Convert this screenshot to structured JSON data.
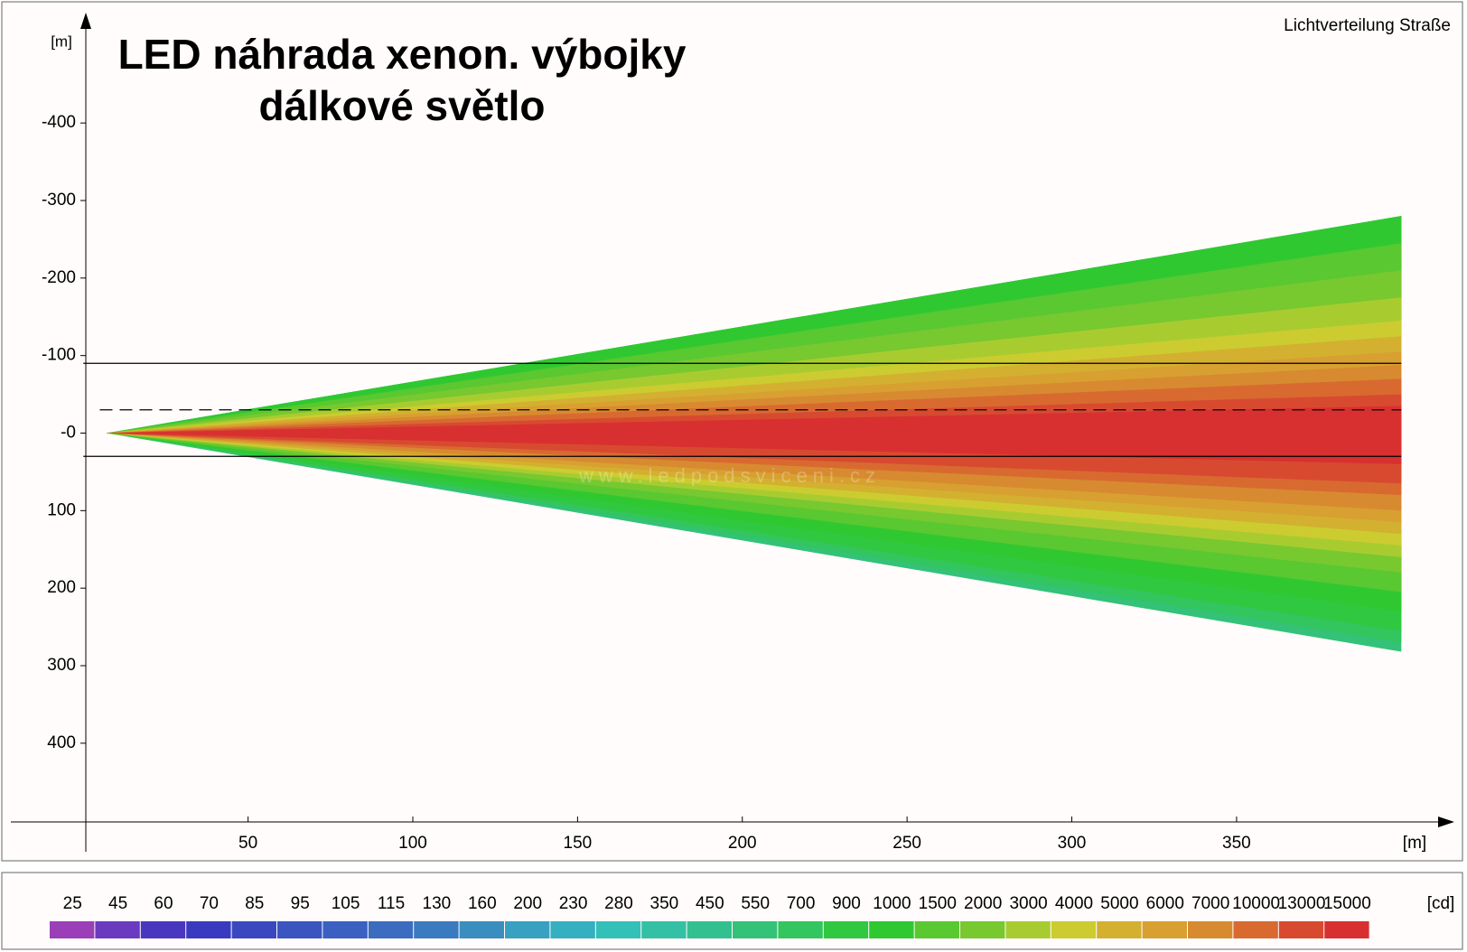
{
  "chart_data": {
    "type": "light-distribution",
    "title_lines": [
      "LED náhrada xenon. výbojky",
      "dálkové světlo"
    ],
    "corner_label": "Lichtverteilung Straße",
    "x_unit": "[m]",
    "y_unit": "[m]",
    "watermark": "www.ledpodsviceni.cz",
    "xlim": [
      -22,
      415
    ],
    "ylim": [
      -540,
      540
    ],
    "xticks": [
      50,
      100,
      150,
      200,
      250,
      300,
      350
    ],
    "yticks": [
      -400,
      -300,
      -200,
      -100,
      {
        "value": 0,
        "label": "-0"
      },
      100,
      200,
      300,
      400
    ],
    "reference_lines": [
      {
        "y": -90,
        "x_start": 0,
        "style": "solid"
      },
      {
        "y": -30,
        "x_start": 5,
        "style": "dashed"
      },
      {
        "y": 30,
        "x_start": 0,
        "style": "solid"
      }
    ],
    "apex": [
      7,
      0
    ],
    "beam_end_x": 400,
    "contours": [
      {
        "level": 550,
        "y_range": [
          -280,
          282
        ]
      },
      {
        "level": 700,
        "y_range": [
          -280,
          270
        ]
      },
      {
        "level": 900,
        "y_range": [
          -280,
          255
        ]
      },
      {
        "level": 1000,
        "y_range": [
          -280,
          230
        ]
      },
      {
        "level": 1500,
        "y_range": [
          -245,
          205
        ]
      },
      {
        "level": 2000,
        "y_range": [
          -210,
          180
        ]
      },
      {
        "level": 3000,
        "y_range": [
          -175,
          160
        ]
      },
      {
        "level": 4000,
        "y_range": [
          -145,
          145
        ]
      },
      {
        "level": 5000,
        "y_range": [
          -125,
          130
        ]
      },
      {
        "level": 6000,
        "y_range": [
          -105,
          115
        ]
      },
      {
        "level": 7000,
        "y_range": [
          -88,
          100
        ]
      },
      {
        "level": 10000,
        "y_range": [
          -70,
          80
        ]
      },
      {
        "level": 13000,
        "y_range": [
          -50,
          65
        ]
      },
      {
        "level": 15000,
        "y_range": [
          -35,
          40
        ]
      }
    ],
    "legend_unit": "[cd]",
    "legend_levels": [
      25,
      45,
      60,
      70,
      85,
      95,
      105,
      115,
      130,
      160,
      200,
      230,
      280,
      350,
      450,
      550,
      700,
      900,
      1000,
      1500,
      2000,
      3000,
      4000,
      5000,
      6000,
      7000,
      10000,
      13000,
      15000
    ],
    "legend_colors": [
      "#9a3fb8",
      "#6a3bbf",
      "#4a37c0",
      "#3a3ac0",
      "#3a48c0",
      "#3a55c0",
      "#3b60c2",
      "#3b6cc0",
      "#3a7abf",
      "#3a8ebf",
      "#38a0c0",
      "#35b0c0",
      "#33c0b8",
      "#33c0a5",
      "#33c090",
      "#33c278",
      "#33c55e",
      "#30c840",
      "#30c830",
      "#5ac830",
      "#78c830",
      "#a8cc30",
      "#cccc30",
      "#d4b030",
      "#d8a030",
      "#d88a30",
      "#d86a30",
      "#d84a30",
      "#d83030"
    ]
  }
}
